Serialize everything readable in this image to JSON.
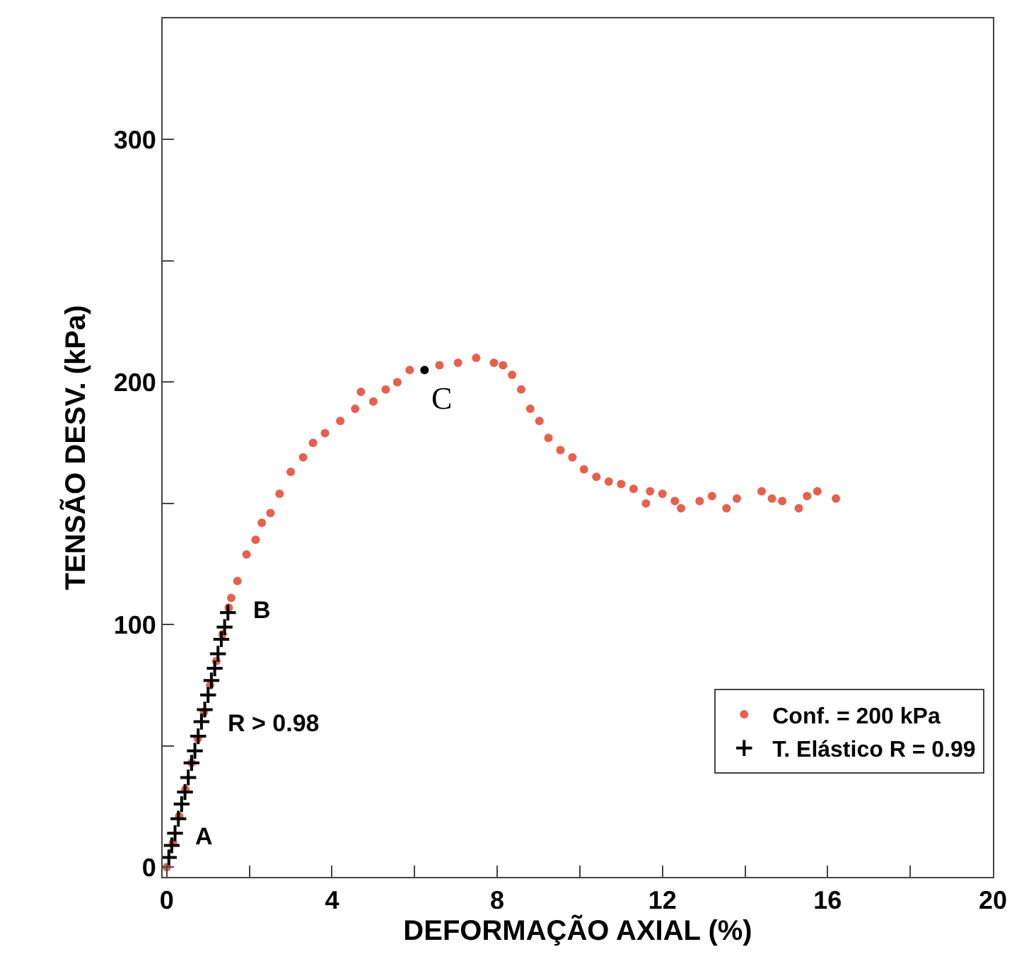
{
  "chart_data": {
    "type": "scatter",
    "xlabel": "DEFORMAÇÃO AXIAL (%)",
    "ylabel": "TENSÃO DESV. (kPa)",
    "xlim": [
      -0.1,
      20
    ],
    "ylim": [
      -4,
      350
    ],
    "xticks": [
      0,
      {
        "value": 2,
        "label": null
      },
      4,
      {
        "value": 6,
        "label": null
      },
      8,
      {
        "value": 10,
        "label": null
      },
      12,
      {
        "value": 14,
        "label": null
      },
      16,
      {
        "value": 18,
        "label": null
      },
      20
    ],
    "yticks": [
      0,
      {
        "value": 50,
        "label": null
      },
      100,
      {
        "value": 150,
        "label": null
      },
      200,
      {
        "value": 250,
        "label": null
      },
      300
    ],
    "legend": "bottom right",
    "series": [
      {
        "name": "Conf. = 200 kPa",
        "color": "#e8604c",
        "marker": "circle",
        "x": [
          0,
          0.15,
          0.3,
          0.45,
          0.6,
          0.75,
          0.9,
          1.05,
          1.2,
          1.35,
          1.5,
          1.56,
          1.71,
          1.93,
          2.15,
          2.3,
          2.51,
          2.73,
          3.0,
          3.3,
          3.54,
          3.83,
          4.2,
          4.56,
          4.7,
          5.0,
          5.3,
          5.58,
          5.88,
          6.6,
          7.05,
          7.49,
          7.92,
          8.14,
          8.36,
          8.58,
          8.8,
          9.02,
          9.24,
          9.53,
          9.82,
          10.1,
          10.4,
          10.7,
          11.0,
          11.3,
          11.6,
          11.7,
          12.0,
          12.3,
          12.45,
          12.9,
          13.2,
          13.55,
          13.8,
          14.4,
          14.65,
          14.9,
          15.3,
          15.5,
          15.75,
          16.2
        ],
        "values": [
          0,
          10,
          21,
          32,
          43,
          53,
          64,
          75,
          85,
          96,
          107,
          111,
          118,
          129,
          135,
          142,
          146,
          154,
          163,
          169,
          175,
          179,
          184,
          189,
          196,
          192,
          197,
          200,
          205,
          207,
          208,
          210,
          208,
          207,
          203,
          197,
          189,
          184,
          177,
          172,
          169,
          164,
          161,
          159,
          158,
          156,
          150,
          155,
          154,
          151,
          148,
          151,
          153,
          148,
          152,
          155,
          152,
          151,
          148,
          153,
          155,
          152
        ]
      },
      {
        "name": "T. Elástico R = 0.99",
        "color": "#000000",
        "marker": "cross",
        "x": [
          0.05,
          0.12,
          0.2,
          0.28,
          0.36,
          0.44,
          0.52,
          0.6,
          0.68,
          0.76,
          0.84,
          0.92,
          1.0,
          1.08,
          1.16,
          1.24,
          1.32,
          1.4,
          1.48
        ],
        "values": [
          4,
          9,
          14,
          20,
          26,
          31,
          37,
          43,
          48,
          54,
          60,
          65,
          71,
          77,
          82,
          88,
          94,
          99,
          105
        ]
      },
      {
        "color": "#000000",
        "marker": "circle",
        "x": [
          6.24
        ],
        "values": [
          205
        ]
      }
    ],
    "annotations": [
      {
        "text": "A",
        "x": 0.2,
        "y": 14
      },
      {
        "text": "B",
        "x": 1.48,
        "y": 105
      },
      {
        "text": "C",
        "x": 6.24,
        "y": 205
      },
      "R > 0.98"
    ]
  }
}
